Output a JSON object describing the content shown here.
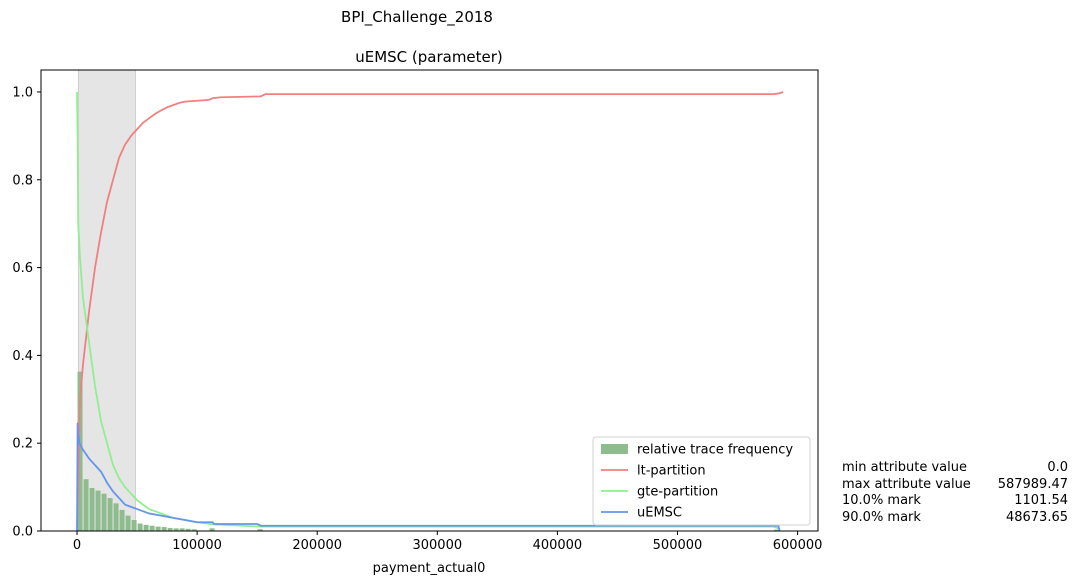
{
  "suptitle": "BPI_Challenge_2018",
  "chart_data": {
    "type": "line",
    "title": "uEMSC (parameter)",
    "xlabel": "payment_actual0",
    "ylabel": "",
    "xlim": [
      -30000,
      617000
    ],
    "ylim": [
      0,
      1.05
    ],
    "xticks": [
      0,
      100000,
      200000,
      300000,
      400000,
      500000,
      600000
    ],
    "yticks": [
      0.0,
      0.2,
      0.4,
      0.6,
      0.8,
      1.0
    ],
    "grid": false,
    "legend": {
      "position": "lower-right",
      "entries": [
        "relative trace frequency",
        "lt-partition",
        "gte-partition",
        "uEMSC"
      ]
    },
    "shaded_region": {
      "x0": 1101.54,
      "x1": 48673.65,
      "color": "#e5e5e5"
    },
    "histogram": {
      "name": "relative trace frequency",
      "color": "#8fbc8f",
      "bin_width": 5000,
      "bins_start": [
        0,
        5000,
        10000,
        15000,
        20000,
        25000,
        30000,
        35000,
        40000,
        45000,
        50000,
        55000,
        60000,
        65000,
        70000,
        75000,
        80000,
        85000,
        90000,
        95000,
        110000,
        150000,
        580000
      ],
      "values": [
        0.363,
        0.118,
        0.098,
        0.092,
        0.085,
        0.075,
        0.063,
        0.048,
        0.035,
        0.025,
        0.017,
        0.014,
        0.012,
        0.01,
        0.009,
        0.007,
        0.006,
        0.006,
        0.005,
        0.004,
        0.006,
        0.004,
        0.003
      ]
    },
    "series": [
      {
        "name": "lt-partition",
        "color": "#f08080",
        "x": [
          0,
          1000,
          2500,
          5000,
          10000,
          15000,
          20000,
          25000,
          30000,
          35000,
          40000,
          45000,
          50000,
          55000,
          60000,
          65000,
          70000,
          75000,
          80000,
          85000,
          90000,
          100000,
          110000,
          113000,
          120000,
          140000,
          153000,
          157000,
          200000,
          300000,
          400000,
          500000,
          580000,
          585000,
          587989
        ],
        "y": [
          0.0,
          0.1,
          0.3,
          0.38,
          0.5,
          0.6,
          0.68,
          0.75,
          0.8,
          0.85,
          0.88,
          0.9,
          0.915,
          0.93,
          0.94,
          0.95,
          0.958,
          0.965,
          0.97,
          0.975,
          0.978,
          0.98,
          0.982,
          0.986,
          0.988,
          0.989,
          0.99,
          0.995,
          0.995,
          0.995,
          0.995,
          0.995,
          0.995,
          0.997,
          1.0
        ]
      },
      {
        "name": "gte-partition",
        "color": "#90ee90",
        "x": [
          0,
          500,
          1000,
          2500,
          5000,
          10000,
          15000,
          20000,
          25000,
          30000,
          35000,
          40000,
          45000,
          50000,
          55000,
          60000,
          70000,
          80000,
          90000,
          100000,
          113000,
          153000,
          200000,
          300000,
          400000,
          500000,
          580000,
          585000
        ],
        "y": [
          1.0,
          0.9,
          0.7,
          0.62,
          0.53,
          0.43,
          0.33,
          0.25,
          0.2,
          0.15,
          0.12,
          0.1,
          0.085,
          0.07,
          0.06,
          0.05,
          0.04,
          0.03,
          0.025,
          0.02,
          0.015,
          0.01,
          0.01,
          0.01,
          0.01,
          0.01,
          0.01,
          0.005
        ]
      },
      {
        "name": "uEMSC",
        "color": "#6495ed",
        "x": [
          0,
          500,
          1000,
          2000,
          5000,
          10000,
          15000,
          20000,
          25000,
          30000,
          35000,
          40000,
          45000,
          50000,
          60000,
          70000,
          80000,
          90000,
          100000,
          113000,
          114000,
          150000,
          153000,
          200000,
          300000,
          400000,
          500000,
          584000,
          585000
        ],
        "y": [
          0.0,
          0.245,
          0.22,
          0.2,
          0.185,
          0.165,
          0.15,
          0.135,
          0.11,
          0.09,
          0.075,
          0.06,
          0.055,
          0.05,
          0.04,
          0.035,
          0.03,
          0.025,
          0.02,
          0.02,
          0.016,
          0.016,
          0.012,
          0.012,
          0.012,
          0.012,
          0.012,
          0.012,
          0.0
        ]
      }
    ]
  },
  "stats": [
    {
      "label": "min attribute value",
      "value": "0.0"
    },
    {
      "label": "max attribute value",
      "value": "587989.47"
    },
    {
      "label": "10.0% mark",
      "value": "1101.54"
    },
    {
      "label": "90.0% mark",
      "value": "48673.65"
    }
  ]
}
